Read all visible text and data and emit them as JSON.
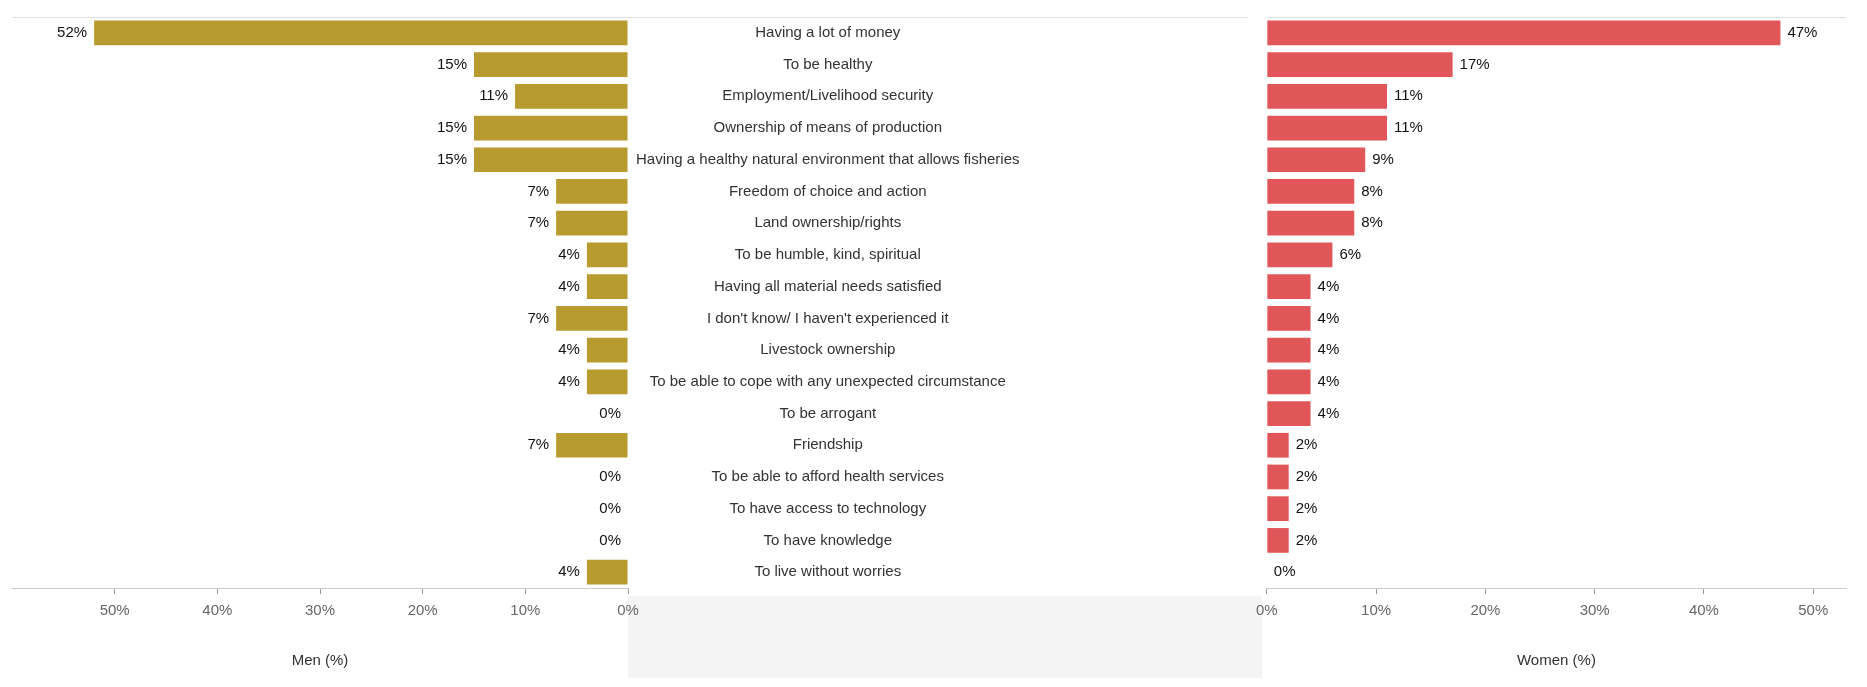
{
  "chart_data": [
    {
      "type": "bar",
      "orientation": "horizontal",
      "xlabel": "Men (%)",
      "categories": [
        "Having a lot of money",
        "To be healthy",
        "Employment/Livelihood security",
        "Ownership of means of production",
        "Having a healthy natural environment that allows fisheries",
        "Freedom of choice and action",
        "Land ownership/rights",
        "To be humble, kind, spiritual",
        "Having all material needs satisfied",
        "I don't know/ I haven't experienced it",
        "Livestock ownership",
        "To be able to cope with any unexpected circumstance",
        "To be arrogant",
        "Friendship",
        "To be able to afford health services",
        "To have access to technology",
        "To have knowledge",
        "To live without worries"
      ],
      "series": [
        {
          "color": "#b89b2e",
          "values": [
            52,
            15,
            11,
            15,
            15,
            7,
            7,
            4,
            4,
            7,
            4,
            4,
            0,
            7,
            0,
            0,
            0,
            4
          ],
          "value_labels": [
            "52%",
            "15%",
            "11%",
            "15%",
            "15%",
            "7%",
            "7%",
            "4%",
            "4%",
            "7%",
            "4%",
            "4%",
            "0%",
            "7%",
            "0%",
            "0%",
            "0%",
            "4%"
          ]
        }
      ],
      "xlim": [
        60,
        0
      ],
      "xticks": [
        {
          "value": 50,
          "label": "50%"
        },
        {
          "value": 40,
          "label": "40%"
        },
        {
          "value": 30,
          "label": "30%"
        },
        {
          "value": 20,
          "label": "20%"
        },
        {
          "value": 10,
          "label": "10%"
        },
        {
          "value": 0,
          "label": "0%"
        }
      ]
    },
    {
      "type": "bar",
      "orientation": "horizontal",
      "xlabel": "Women (%)",
      "tick_labels": "x",
      "categories": [
        null,
        null,
        null,
        null,
        null,
        null,
        null,
        null,
        null,
        null,
        null,
        null,
        null,
        null,
        null,
        null,
        null,
        null
      ],
      "series": [
        {
          "color": "#e05659",
          "values": [
            47,
            17,
            11,
            11,
            9,
            8,
            8,
            6,
            4,
            4,
            4,
            4,
            4,
            2,
            2,
            2,
            2,
            0
          ],
          "value_labels": [
            "47%",
            "17%",
            "11%",
            "11%",
            "9%",
            "8%",
            "8%",
            "6%",
            "4%",
            "4%",
            "4%",
            "4%",
            "4%",
            "2%",
            "2%",
            "2%",
            "2%",
            "0%"
          ]
        }
      ],
      "xlim": [
        0,
        53
      ],
      "xticks": [
        {
          "value": 0,
          "label": "0%"
        },
        {
          "value": 10,
          "label": "10%"
        },
        {
          "value": 20,
          "label": "20%"
        },
        {
          "value": 30,
          "label": "30%"
        },
        {
          "value": 40,
          "label": "40%"
        },
        {
          "value": 50,
          "label": "50%"
        }
      ]
    }
  ]
}
